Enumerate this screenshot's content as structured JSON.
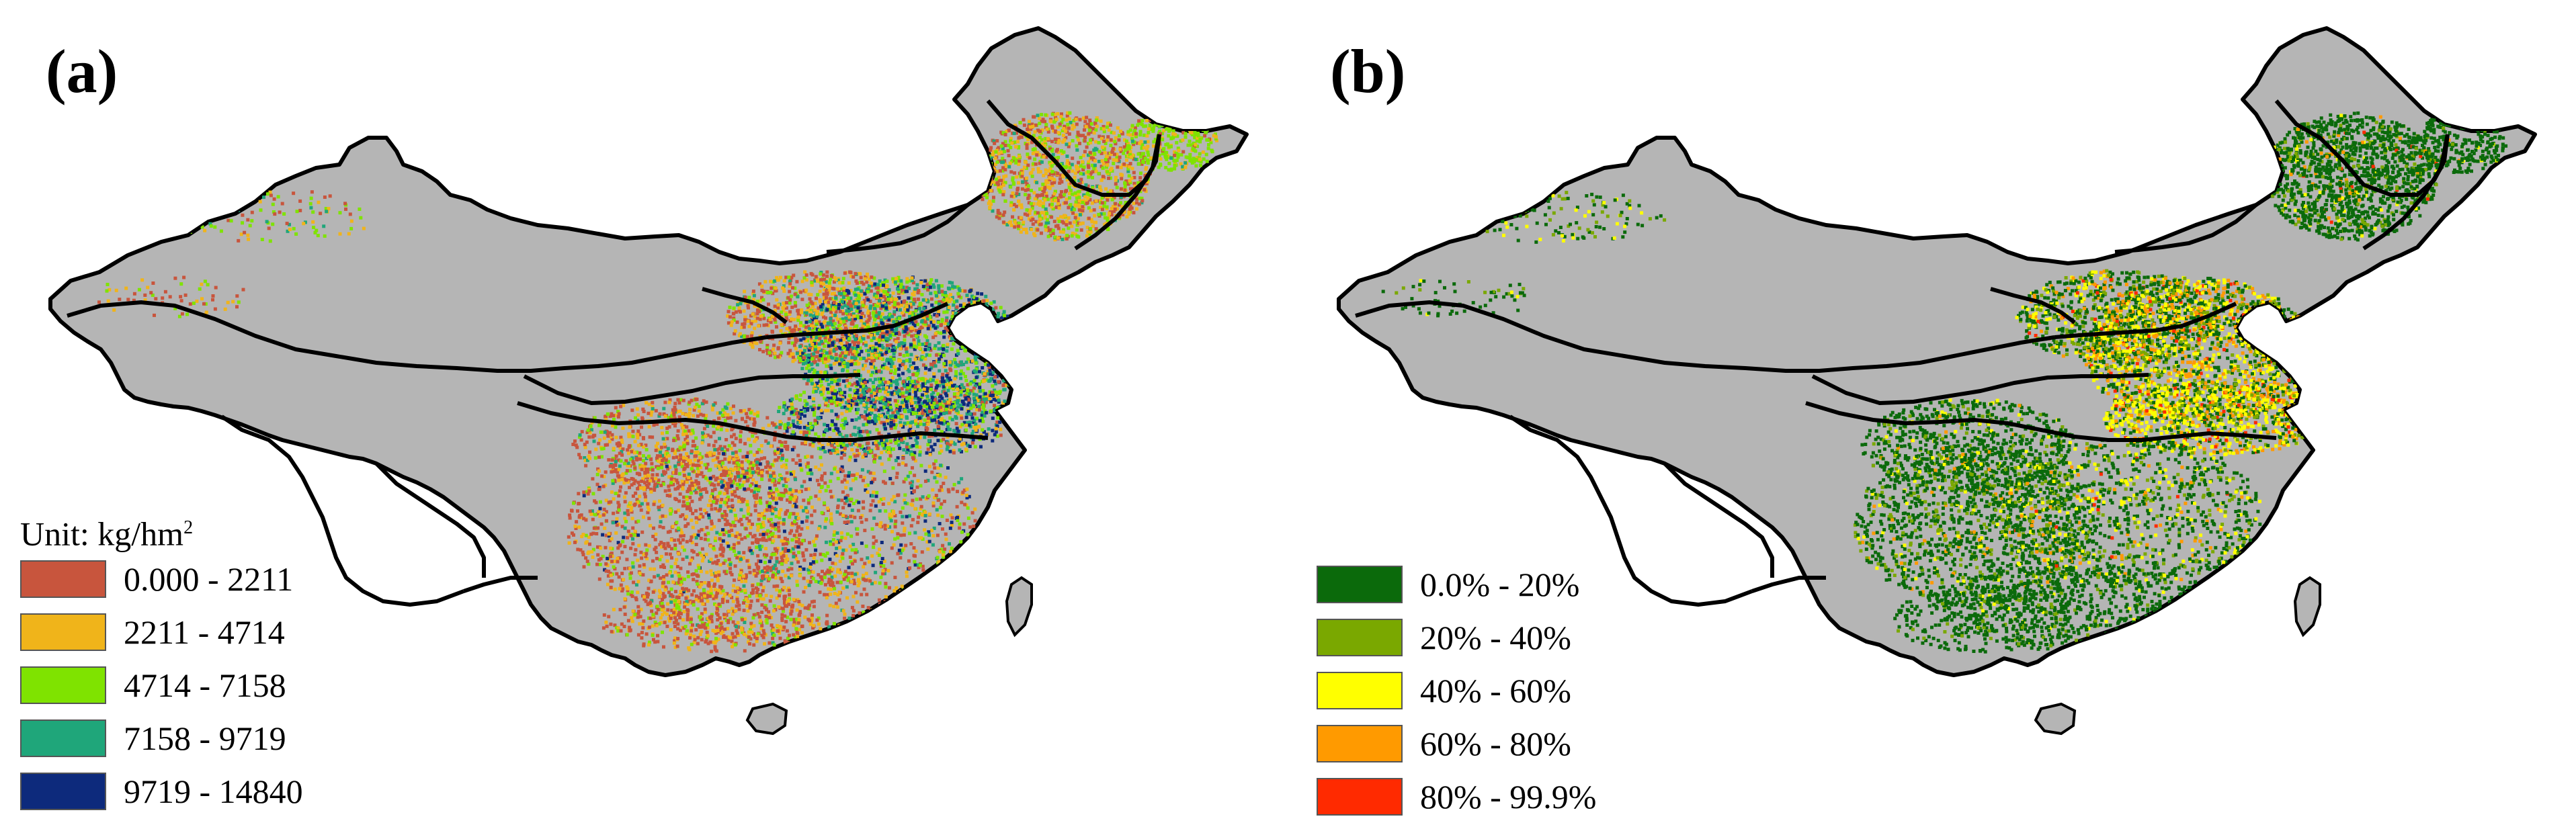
{
  "panels": [
    {
      "label": "(a)",
      "legend": {
        "title": "Unit: kg/hm",
        "title_sup": "2",
        "items": [
          {
            "label": "0.000 - 2211",
            "color": "#c8553d"
          },
          {
            "label": "2211 - 4714",
            "color": "#f0b41a"
          },
          {
            "label": "4714 - 7158",
            "color": "#7fe300"
          },
          {
            "label": "7158 - 9719",
            "color": "#1fa67a"
          },
          {
            "label": "9719 - 14840",
            "color": "#0d2a7c"
          }
        ]
      }
    },
    {
      "label": "(b)",
      "legend": {
        "title": "",
        "items": [
          {
            "label": "0.0% - 20%",
            "color": "#0b6a0b"
          },
          {
            "label": "20% - 40%",
            "color": "#7aa800"
          },
          {
            "label": "40% - 60%",
            "color": "#ffff00"
          },
          {
            "label": "60% - 80%",
            "color": "#ff9a00"
          },
          {
            "label": "80% - 99.9%",
            "color": "#ff2a00"
          }
        ]
      }
    }
  ],
  "colors": {
    "land": "#b5b5b5",
    "boundary": "#000000",
    "background": "#ffffff"
  }
}
